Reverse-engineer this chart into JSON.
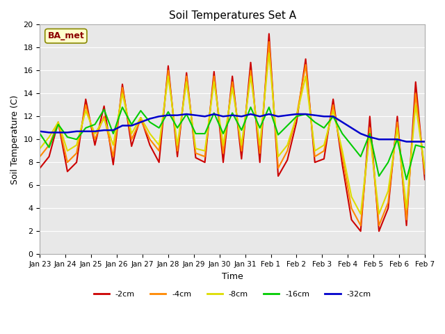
{
  "title": "Soil Temperatures Set A",
  "xlabel": "Time",
  "ylabel": "Soil Temperature (C)",
  "annotation": "BA_met",
  "ylim": [
    0,
    20
  ],
  "background_color": "#e8e8e8",
  "plot_bg": "#e8e8e8",
  "tick_labels": [
    "Jan 23",
    "Jan 24",
    "Jan 25",
    "Jan 26",
    "Jan 27",
    "Jan 28",
    "Jan 29",
    "Jan 30",
    "Jan 31",
    "Feb 1",
    "Feb 2",
    "Feb 3",
    "Feb 4",
    "Feb 5",
    "Feb 6",
    "Feb 7"
  ],
  "series": {
    "-2cm": {
      "color": "#cc0000",
      "linewidth": 1.5,
      "values": [
        7.5,
        8.5,
        11.5,
        7.2,
        8.0,
        13.5,
        9.5,
        12.9,
        7.8,
        14.8,
        9.4,
        11.9,
        9.5,
        8.0,
        16.4,
        8.5,
        15.8,
        8.4,
        8.0,
        15.9,
        8.0,
        15.5,
        8.3,
        16.7,
        8.0,
        19.2,
        6.8,
        8.2,
        11.5,
        17.0,
        8.0,
        8.3,
        13.5,
        7.8,
        3.0,
        2.0,
        12.0,
        2.0,
        4.0,
        12.0,
        2.5,
        15.0,
        6.5
      ]
    },
    "-4cm": {
      "color": "#ff8800",
      "linewidth": 1.5,
      "values": [
        8.5,
        9.5,
        11.5,
        8.0,
        8.8,
        13.0,
        10.0,
        12.0,
        8.5,
        14.5,
        10.0,
        11.7,
        10.0,
        9.0,
        16.0,
        9.0,
        15.5,
        8.8,
        8.5,
        15.5,
        8.8,
        15.0,
        9.0,
        16.0,
        8.8,
        18.5,
        7.5,
        9.0,
        12.0,
        16.5,
        8.5,
        9.0,
        13.0,
        8.5,
        4.0,
        2.5,
        11.0,
        2.5,
        4.5,
        11.5,
        3.0,
        14.0,
        7.0
      ]
    },
    "-8cm": {
      "color": "#dddd00",
      "linewidth": 1.5,
      "values": [
        9.2,
        10.2,
        11.5,
        9.0,
        9.5,
        12.5,
        10.5,
        11.8,
        9.5,
        14.0,
        10.5,
        11.9,
        10.5,
        9.5,
        15.5,
        9.5,
        15.0,
        9.2,
        9.0,
        15.0,
        9.5,
        14.5,
        9.5,
        15.5,
        9.5,
        17.5,
        8.5,
        9.5,
        12.0,
        15.5,
        9.0,
        9.5,
        12.5,
        9.0,
        5.0,
        3.5,
        10.5,
        3.5,
        5.5,
        11.0,
        4.0,
        13.0,
        7.5
      ]
    },
    "-16cm": {
      "color": "#00cc00",
      "linewidth": 1.5,
      "values": [
        10.5,
        9.3,
        11.3,
        10.2,
        10.0,
        11.0,
        11.3,
        12.6,
        10.5,
        12.8,
        11.3,
        12.5,
        11.5,
        11.0,
        12.4,
        11.0,
        12.2,
        10.5,
        10.5,
        12.3,
        10.5,
        12.3,
        10.8,
        12.8,
        11.0,
        12.8,
        10.4,
        11.2,
        12.0,
        12.2,
        11.5,
        11.0,
        12.0,
        10.5,
        9.5,
        8.5,
        10.5,
        6.8,
        8.0,
        10.0,
        6.5,
        9.5,
        9.3
      ]
    },
    "-32cm": {
      "color": "#0000cc",
      "linewidth": 1.8,
      "values": [
        10.7,
        10.6,
        10.6,
        10.6,
        10.7,
        10.7,
        10.7,
        10.8,
        10.8,
        11.2,
        11.2,
        11.5,
        11.8,
        12.0,
        12.1,
        12.1,
        12.2,
        12.1,
        12.0,
        12.2,
        12.0,
        12.1,
        12.0,
        12.2,
        12.0,
        12.2,
        12.0,
        12.1,
        12.2,
        12.2,
        12.1,
        12.0,
        12.0,
        11.5,
        11.0,
        10.5,
        10.2,
        10.0,
        10.0,
        10.0,
        9.8,
        9.8,
        9.8
      ]
    }
  }
}
